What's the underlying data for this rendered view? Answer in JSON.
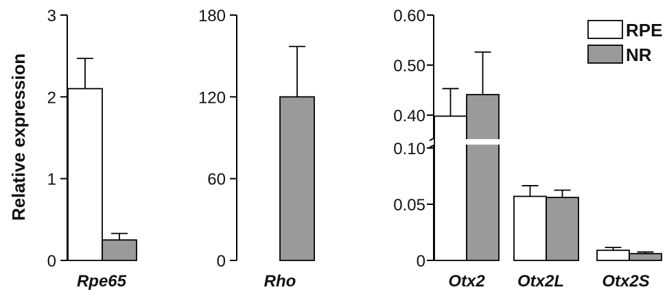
{
  "colors": {
    "RPE": "#ffffff",
    "NR": "#9a9a9a",
    "axis": "#000000"
  },
  "legend": [
    {
      "key": "RPE",
      "label": "RPE"
    },
    {
      "key": "NR",
      "label": "NR"
    }
  ],
  "ylabel": "Relative expression",
  "chart_data": [
    {
      "type": "bar",
      "ylabel": "Relative expression",
      "ylim": [
        0,
        3
      ],
      "yticks": [
        "0",
        "1",
        "2",
        "3"
      ],
      "yticks_values": [
        0,
        1,
        2,
        3
      ],
      "categories": [
        "Rpe65"
      ],
      "series": [
        {
          "name": "RPE",
          "values": [
            2.1
          ],
          "errors": [
            0.37
          ]
        },
        {
          "name": "NR",
          "values": [
            0.25
          ],
          "errors": [
            0.08
          ]
        }
      ]
    },
    {
      "type": "bar",
      "ylim": [
        0,
        180
      ],
      "yticks": [
        "0",
        "60",
        "120",
        "180"
      ],
      "yticks_values": [
        0,
        60,
        120,
        180
      ],
      "categories": [
        "Rho"
      ],
      "series": [
        {
          "name": "RPE",
          "values": [
            0
          ],
          "errors": [
            0
          ]
        },
        {
          "name": "NR",
          "values": [
            120
          ],
          "errors": [
            37
          ]
        }
      ]
    },
    {
      "type": "bar",
      "broken_axis": true,
      "ylim_lower": [
        0,
        0.1
      ],
      "ylim_upper": [
        0.37,
        0.6
      ],
      "yticks_lower": [
        "0",
        "0.05",
        "0.10"
      ],
      "yticks_lower_values": [
        0,
        0.05,
        0.1
      ],
      "yticks_upper": [
        "0.40",
        "0.50",
        "0.60"
      ],
      "yticks_upper_values": [
        0.4,
        0.5,
        0.6
      ],
      "categories": [
        "Otx2",
        "Otx2L",
        "Otx2S"
      ],
      "series": [
        {
          "name": "RPE",
          "values": [
            0.398,
            0.057,
            0.009
          ],
          "errors": [
            0.055,
            0.0095,
            0.0025
          ]
        },
        {
          "name": "NR",
          "values": [
            0.441,
            0.056,
            0.006
          ],
          "errors": [
            0.085,
            0.0065,
            0.0015
          ]
        }
      ]
    }
  ]
}
